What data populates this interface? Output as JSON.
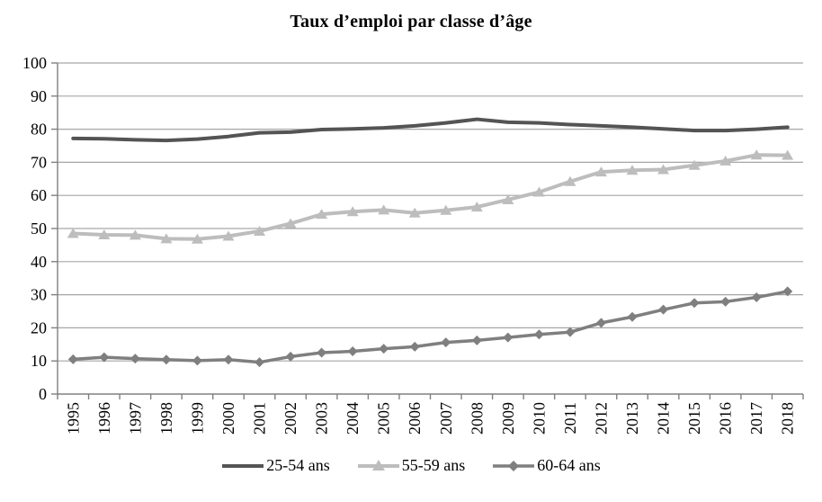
{
  "title": "Taux d’emploi par classe d’âge",
  "legend": {
    "entries": [
      "25-54 ans",
      "55-59 ans",
      "60-64 ans"
    ]
  },
  "colors": {
    "grid": "#a6a6a6",
    "axis": "#808080",
    "text": "#000000",
    "series_dark": "#545454",
    "series_light": "#bdbdbd",
    "series_mid": "#7f7f7f"
  },
  "chart_data": {
    "type": "line",
    "title": "Taux d’emploi par classe d’âge",
    "xlabel": "",
    "ylabel": "",
    "ylim": [
      0,
      100
    ],
    "yticks": [
      0,
      10,
      20,
      30,
      40,
      50,
      60,
      70,
      80,
      90,
      100
    ],
    "grid": true,
    "legend_position": "bottom",
    "x": [
      1995,
      1996,
      1997,
      1998,
      1999,
      2000,
      2001,
      2002,
      2003,
      2004,
      2005,
      2006,
      2007,
      2008,
      2009,
      2010,
      2011,
      2012,
      2013,
      2014,
      2015,
      2016,
      2017,
      2018
    ],
    "series": [
      {
        "name": "25-54 ans",
        "color": "#545454",
        "marker": "none",
        "line_width": 4,
        "values": [
          77.2,
          77.1,
          76.8,
          76.6,
          77.0,
          77.8,
          78.9,
          79.1,
          79.9,
          80.1,
          80.4,
          81.0,
          81.9,
          83.0,
          82.1,
          81.9,
          81.4,
          81.0,
          80.6,
          80.1,
          79.6,
          79.6,
          80.0,
          80.6
        ]
      },
      {
        "name": "55-59 ans",
        "color": "#bdbdbd",
        "marker": "triangle",
        "line_width": 4,
        "values": [
          48.5,
          48.1,
          48.0,
          46.9,
          46.8,
          47.7,
          49.2,
          51.5,
          54.3,
          55.1,
          55.6,
          54.7,
          55.5,
          56.5,
          58.7,
          61.0,
          64.2,
          67.1,
          67.6,
          67.8,
          69.1,
          70.4,
          72.2,
          72.1
        ]
      },
      {
        "name": "60-64 ans",
        "color": "#7f7f7f",
        "marker": "diamond",
        "line_width": 3.5,
        "values": [
          10.5,
          11.1,
          10.7,
          10.4,
          10.1,
          10.4,
          9.6,
          11.3,
          12.5,
          12.9,
          13.7,
          14.3,
          15.6,
          16.2,
          17.1,
          18.0,
          18.7,
          21.5,
          23.3,
          25.5,
          27.5,
          27.9,
          29.2,
          31.0
        ]
      }
    ]
  }
}
